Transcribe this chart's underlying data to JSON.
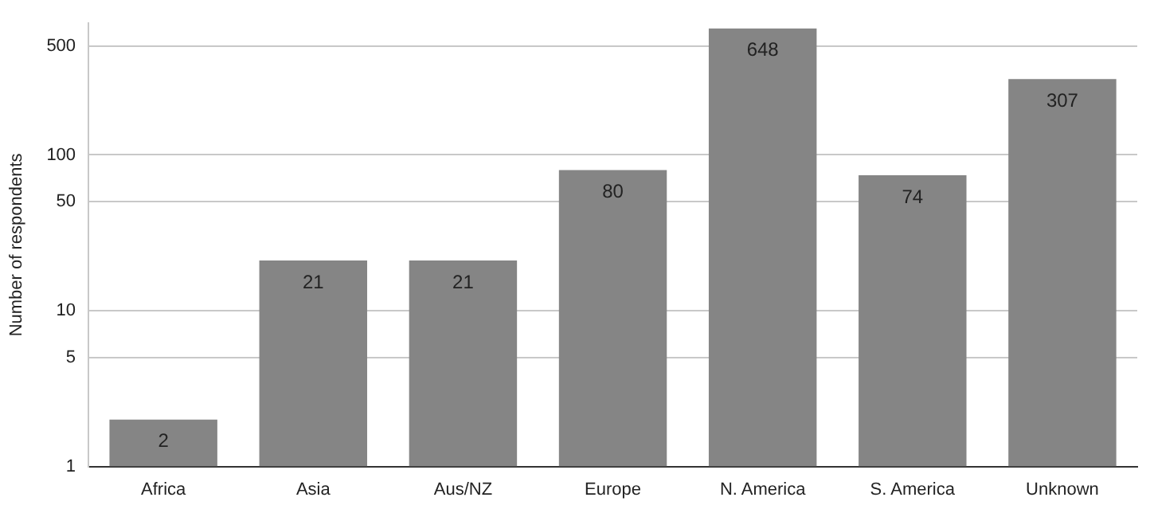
{
  "chart_data": {
    "type": "bar",
    "ylabel": "Number of respondents",
    "categories": [
      "Africa",
      "Asia",
      "Aus/NZ",
      "Europe",
      "N. America",
      "S. America",
      "Unknown"
    ],
    "values": [
      2,
      21,
      21,
      80,
      648,
      74,
      307
    ],
    "color": "#858585",
    "log": true,
    "ylim": [
      1,
      700
    ],
    "yticks": [
      1,
      5,
      10,
      50,
      100,
      500
    ],
    "grid": "y",
    "legend": false,
    "data_labels": true
  }
}
